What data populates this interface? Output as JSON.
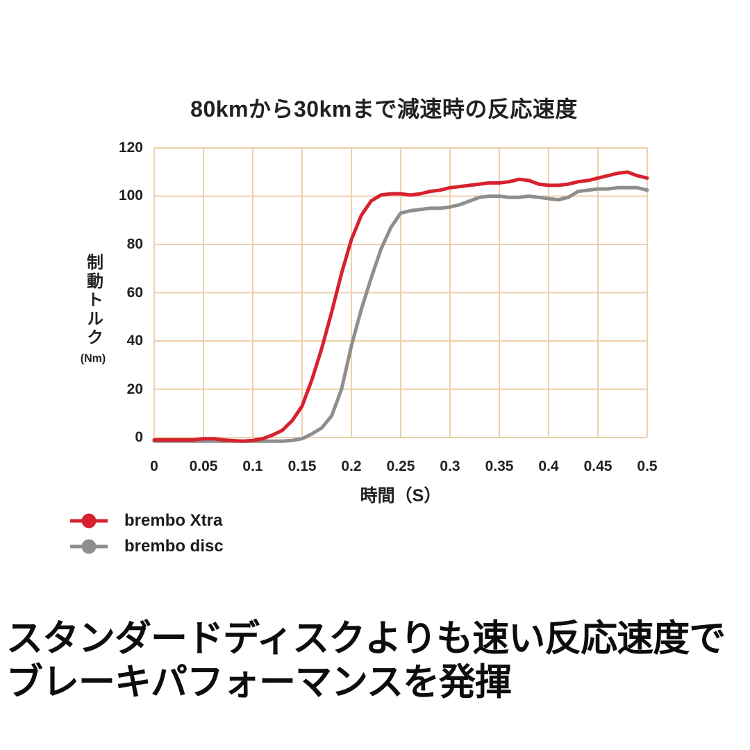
{
  "chart": {
    "y_axis": {
      "title": "制動トルク",
      "unit": "(Nm)"
    },
    "x_axis": {
      "title": "時間（S）"
    }
  },
  "chart_data": {
    "type": "line",
    "title": "80kmから30kmまで減速時の反応速度",
    "xlabel": "時間（S）",
    "ylabel": "制動トルク (Nm)",
    "xlim": [
      0,
      0.5
    ],
    "ylim": [
      0,
      120
    ],
    "x_ticks": [
      0,
      0.05,
      0.1,
      0.15,
      0.2,
      0.25,
      0.3,
      0.35,
      0.4,
      0.45,
      0.5
    ],
    "x_tick_labels": [
      "0",
      "0.05",
      "0.1",
      "0.15",
      "0.2",
      "0.25",
      "0.3",
      "0.35",
      "0.4",
      "0.45",
      "0.5"
    ],
    "y_ticks": [
      0,
      20,
      40,
      60,
      80,
      100,
      120
    ],
    "grid": true,
    "grid_color": "#ecd0ab",
    "legend_position": "bottom-left",
    "x": [
      0,
      0.01,
      0.02,
      0.03,
      0.04,
      0.05,
      0.06,
      0.07,
      0.08,
      0.09,
      0.1,
      0.11,
      0.12,
      0.13,
      0.14,
      0.15,
      0.16,
      0.17,
      0.18,
      0.19,
      0.2,
      0.21,
      0.22,
      0.23,
      0.24,
      0.25,
      0.26,
      0.27,
      0.28,
      0.29,
      0.3,
      0.31,
      0.32,
      0.33,
      0.34,
      0.35,
      0.36,
      0.37,
      0.38,
      0.39,
      0.4,
      0.41,
      0.42,
      0.43,
      0.44,
      0.45,
      0.46,
      0.47,
      0.48,
      0.49,
      0.5
    ],
    "series": [
      {
        "name": "brembo Xtra",
        "color": "#d7222e",
        "values": [
          -1,
          -1,
          -1,
          -1,
          -1,
          -0.5,
          -0.5,
          -1,
          -1.3,
          -1.5,
          -1.2,
          -0.5,
          1,
          3,
          7,
          13,
          24,
          37,
          52,
          68,
          82,
          92,
          98,
          100.5,
          101,
          101,
          100.5,
          101,
          102,
          102.5,
          103.5,
          104,
          104.5,
          105,
          105.5,
          105.5,
          106,
          107,
          106.5,
          105,
          104.5,
          104.5,
          105,
          106,
          106.5,
          107.5,
          108.5,
          109.5,
          110,
          108.5,
          107.5
        ]
      },
      {
        "name": "brembo disc",
        "color": "#8e8e8e",
        "values": [
          -1.5,
          -1.5,
          -1.5,
          -1.5,
          -1.5,
          -1.5,
          -1.5,
          -1.5,
          -1.5,
          -1.5,
          -1.5,
          -1.5,
          -1.5,
          -1.5,
          -1.2,
          -0.5,
          1.5,
          4,
          9,
          20,
          38,
          53,
          66,
          78,
          87,
          93,
          94,
          94.5,
          95,
          95,
          95.5,
          96.5,
          98,
          99.5,
          100,
          100,
          99.5,
          99.5,
          100,
          99.5,
          99,
          98.5,
          99.5,
          102,
          102.5,
          103,
          103,
          103.5,
          103.5,
          103.5,
          102.5
        ]
      }
    ]
  },
  "caption": {
    "line1": "スタンダードディスクよりも速い反応速度で",
    "line2": "ブレーキパフォーマンスを発揮"
  }
}
